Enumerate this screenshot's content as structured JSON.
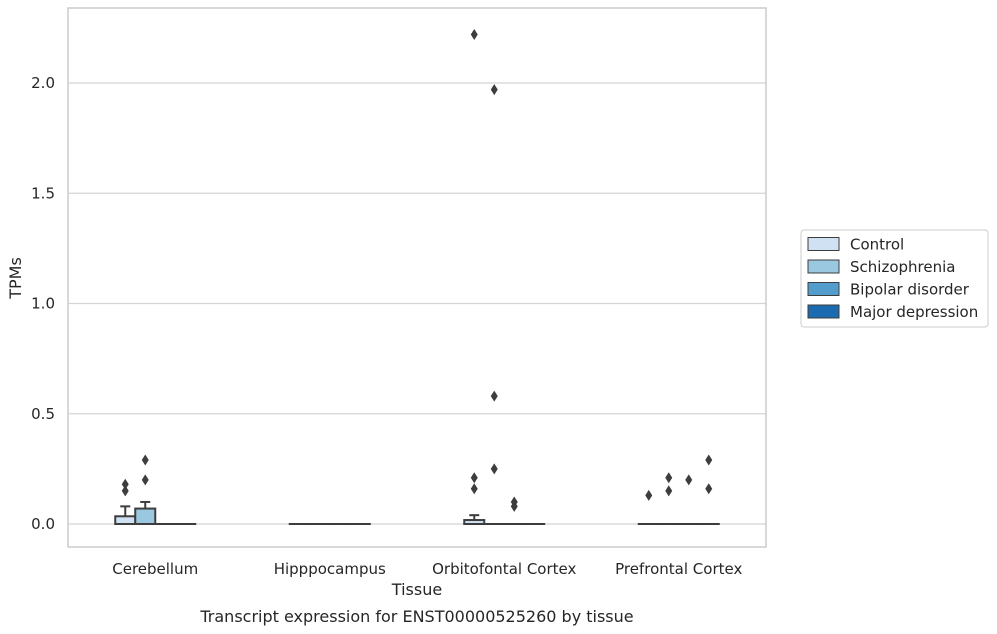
{
  "chart_data": {
    "type": "box",
    "caption": "Transcript expression for ENST00000525260 by tissue",
    "xlabel": "Tissue",
    "ylabel": "TPMs",
    "ylim": [
      -0.11,
      2.35
    ],
    "yticks": [
      0.0,
      0.5,
      1.0,
      1.5,
      2.0
    ],
    "grid": true,
    "legend_position": "right",
    "categories": [
      "Cerebellum",
      "Hipppocampus",
      "Orbitofontal Cortex",
      "Prefrontal Cortex"
    ],
    "series": [
      {
        "name": "Control",
        "color": "#cfe1f2",
        "boxes": [
          {
            "q1": 0.0,
            "median": 0.0,
            "q3": 0.035,
            "whisker_low": 0.0,
            "whisker_high": 0.08,
            "outliers": [
              0.15,
              0.18
            ]
          },
          {
            "q1": 0.0,
            "median": 0.0,
            "q3": 0.0,
            "whisker_low": 0.0,
            "whisker_high": 0.0,
            "outliers": []
          },
          {
            "q1": 0.0,
            "median": 0.0,
            "q3": 0.018,
            "whisker_low": 0.0,
            "whisker_high": 0.04,
            "outliers": [
              0.16,
              0.21,
              2.22
            ]
          },
          {
            "q1": 0.0,
            "median": 0.0,
            "q3": 0.0,
            "whisker_low": 0.0,
            "whisker_high": 0.0,
            "outliers": [
              0.13
            ]
          }
        ]
      },
      {
        "name": "Schizophrenia",
        "color": "#9ac8e0",
        "boxes": [
          {
            "q1": 0.0,
            "median": 0.0,
            "q3": 0.07,
            "whisker_low": 0.0,
            "whisker_high": 0.1,
            "outliers": [
              0.2,
              0.29
            ]
          },
          {
            "q1": 0.0,
            "median": 0.0,
            "q3": 0.0,
            "whisker_low": 0.0,
            "whisker_high": 0.0,
            "outliers": []
          },
          {
            "q1": 0.0,
            "median": 0.0,
            "q3": 0.0,
            "whisker_low": 0.0,
            "whisker_high": 0.0,
            "outliers": [
              0.25,
              0.58,
              1.97
            ]
          },
          {
            "q1": 0.0,
            "median": 0.0,
            "q3": 0.0,
            "whisker_low": 0.0,
            "whisker_high": 0.0,
            "outliers": [
              0.15,
              0.21
            ]
          }
        ]
      },
      {
        "name": "Bipolar disorder",
        "color": "#529dcc",
        "boxes": [
          {
            "q1": 0.0,
            "median": 0.0,
            "q3": 0.0,
            "whisker_low": 0.0,
            "whisker_high": 0.0,
            "outliers": []
          },
          {
            "q1": 0.0,
            "median": 0.0,
            "q3": 0.0,
            "whisker_low": 0.0,
            "whisker_high": 0.0,
            "outliers": []
          },
          {
            "q1": 0.0,
            "median": 0.0,
            "q3": 0.0,
            "whisker_low": 0.0,
            "whisker_high": 0.0,
            "outliers": [
              0.08,
              0.1
            ]
          },
          {
            "q1": 0.0,
            "median": 0.0,
            "q3": 0.0,
            "whisker_low": 0.0,
            "whisker_high": 0.0,
            "outliers": [
              0.2
            ]
          }
        ]
      },
      {
        "name": "Major depression",
        "color": "#1c6aaf",
        "boxes": [
          {
            "q1": 0.0,
            "median": 0.0,
            "q3": 0.0,
            "whisker_low": 0.0,
            "whisker_high": 0.0,
            "outliers": []
          },
          {
            "q1": 0.0,
            "median": 0.0,
            "q3": 0.0,
            "whisker_low": 0.0,
            "whisker_high": 0.0,
            "outliers": []
          },
          {
            "q1": 0.0,
            "median": 0.0,
            "q3": 0.0,
            "whisker_low": 0.0,
            "whisker_high": 0.0,
            "outliers": []
          },
          {
            "q1": 0.0,
            "median": 0.0,
            "q3": 0.0,
            "whisker_low": 0.0,
            "whisker_high": 0.0,
            "outliers": [
              0.16,
              0.29
            ]
          }
        ]
      }
    ],
    "colors": {
      "frame": "#cccccc",
      "grid": "#d4d4d4",
      "box_edge": "#3d3d3d",
      "outlier": "#3d3d3d"
    }
  }
}
